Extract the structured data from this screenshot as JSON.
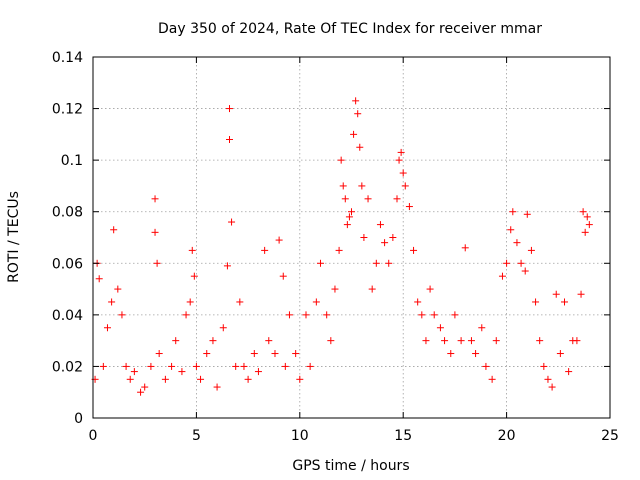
{
  "chart_data": {
    "type": "scatter",
    "title": "Day 350 of 2024, Rate Of TEC Index for receiver mmar",
    "xlabel": "GPS time / hours",
    "ylabel": "ROTI / TECUs",
    "xlim": [
      0,
      25
    ],
    "ylim": [
      0,
      0.14
    ],
    "xticks": [
      0,
      5,
      10,
      15,
      20,
      25
    ],
    "xtick_labels": [
      "0",
      "5",
      "10",
      "15",
      "20",
      "25"
    ],
    "yticks": [
      0,
      0.02,
      0.04,
      0.06,
      0.08,
      0.1,
      0.12,
      0.14
    ],
    "ytick_labels": [
      "0",
      "0.02",
      "0.04",
      "0.06",
      "0.08",
      "0.1",
      "0.12",
      "0.14"
    ],
    "grid": true,
    "marker": "plus",
    "color": "#ff0000",
    "series": [
      {
        "name": "ROTI",
        "x": [
          0.1,
          0.2,
          0.3,
          0.5,
          0.7,
          0.9,
          1.0,
          1.2,
          1.4,
          1.6,
          1.8,
          2.0,
          2.3,
          2.5,
          2.8,
          3.0,
          3.0,
          3.1,
          3.2,
          3.5,
          3.8,
          4.0,
          4.3,
          4.5,
          4.7,
          4.8,
          4.9,
          5.0,
          5.2,
          5.5,
          5.8,
          6.0,
          6.3,
          6.5,
          6.6,
          6.6,
          6.7,
          6.9,
          7.1,
          7.3,
          7.5,
          7.8,
          8.0,
          8.3,
          8.5,
          8.8,
          9.0,
          9.2,
          9.3,
          9.5,
          9.8,
          10.0,
          10.3,
          10.5,
          10.8,
          11.0,
          11.3,
          11.5,
          11.7,
          11.9,
          12.0,
          12.1,
          12.2,
          12.3,
          12.4,
          12.5,
          12.6,
          12.7,
          12.8,
          12.9,
          13.0,
          13.1,
          13.3,
          13.5,
          13.7,
          13.9,
          14.1,
          14.3,
          14.5,
          14.7,
          14.8,
          14.9,
          15.0,
          15.1,
          15.3,
          15.5,
          15.7,
          15.9,
          16.1,
          16.3,
          16.5,
          16.8,
          17.0,
          17.3,
          17.5,
          17.8,
          18.0,
          18.3,
          18.5,
          18.8,
          19.0,
          19.3,
          19.5,
          19.8,
          20.0,
          20.2,
          20.3,
          20.5,
          20.7,
          20.9,
          21.0,
          21.2,
          21.4,
          21.6,
          21.8,
          22.0,
          22.2,
          22.4,
          22.6,
          22.8,
          23.0,
          23.2,
          23.4,
          23.6,
          23.7,
          23.8,
          23.9,
          24.0
        ],
        "y": [
          0.015,
          0.06,
          0.054,
          0.02,
          0.035,
          0.045,
          0.073,
          0.05,
          0.04,
          0.02,
          0.015,
          0.018,
          0.01,
          0.012,
          0.02,
          0.085,
          0.072,
          0.06,
          0.025,
          0.015,
          0.02,
          0.03,
          0.018,
          0.04,
          0.045,
          0.065,
          0.055,
          0.02,
          0.015,
          0.025,
          0.03,
          0.012,
          0.035,
          0.059,
          0.12,
          0.108,
          0.076,
          0.02,
          0.045,
          0.02,
          0.015,
          0.025,
          0.018,
          0.065,
          0.03,
          0.025,
          0.069,
          0.055,
          0.02,
          0.04,
          0.025,
          0.015,
          0.04,
          0.02,
          0.045,
          0.06,
          0.04,
          0.03,
          0.05,
          0.065,
          0.1,
          0.09,
          0.085,
          0.075,
          0.078,
          0.08,
          0.11,
          0.123,
          0.118,
          0.105,
          0.09,
          0.07,
          0.085,
          0.05,
          0.06,
          0.075,
          0.068,
          0.06,
          0.07,
          0.085,
          0.1,
          0.103,
          0.095,
          0.09,
          0.082,
          0.065,
          0.045,
          0.04,
          0.03,
          0.05,
          0.04,
          0.035,
          0.03,
          0.025,
          0.04,
          0.03,
          0.066,
          0.03,
          0.025,
          0.035,
          0.02,
          0.015,
          0.03,
          0.055,
          0.06,
          0.073,
          0.08,
          0.068,
          0.06,
          0.057,
          0.079,
          0.065,
          0.045,
          0.03,
          0.02,
          0.015,
          0.012,
          0.048,
          0.025,
          0.045,
          0.018,
          0.03,
          0.03,
          0.048,
          0.08,
          0.072,
          0.078,
          0.075
        ]
      }
    ]
  }
}
